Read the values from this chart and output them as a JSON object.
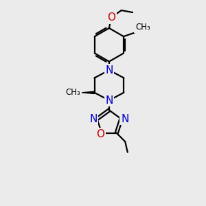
{
  "bg_color": "#ebebeb",
  "bond_color": "#000000",
  "N_color": "#0000cc",
  "O_color": "#cc0000",
  "font_size": 10,
  "lw": 1.6,
  "fig_w": 3.0,
  "fig_h": 3.0,
  "dpi": 100,
  "xlim": [
    0,
    10
  ],
  "ylim": [
    0,
    10
  ]
}
